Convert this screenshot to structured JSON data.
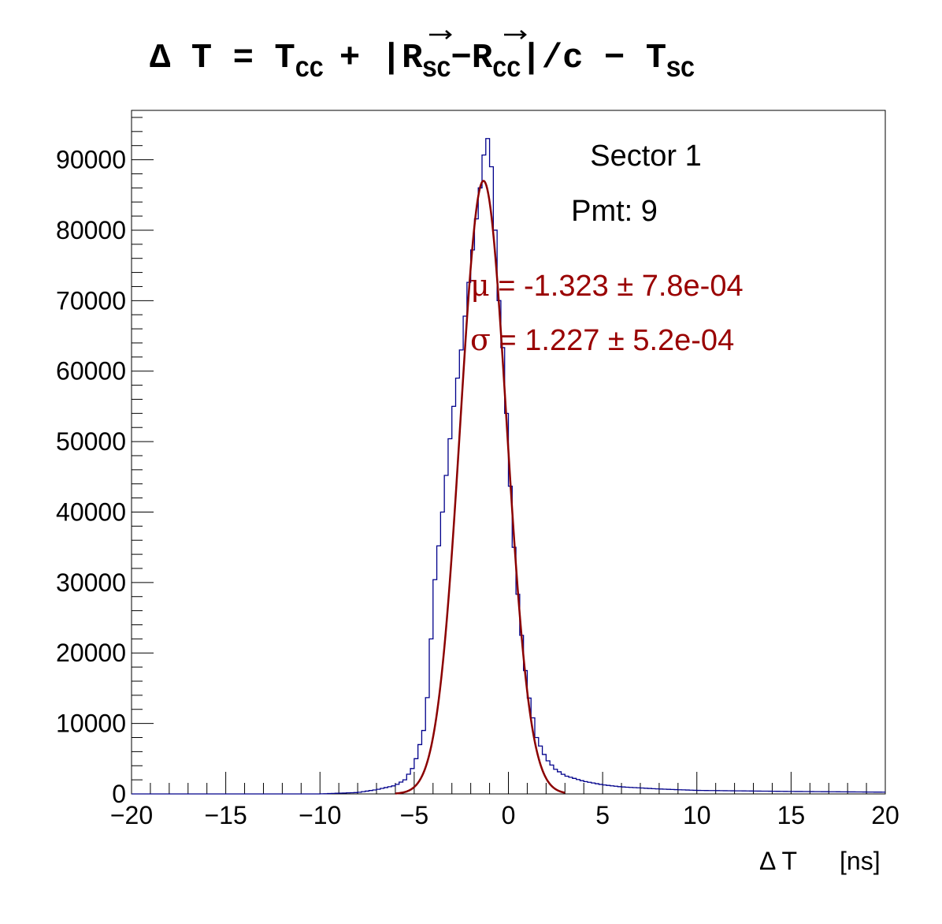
{
  "colors": {
    "histogram": "#00008b",
    "fit": "#8b0000",
    "fit_text": "#990000",
    "axes": "#000000",
    "background": "#ffffff"
  },
  "title": {
    "prefix": "Δ T = T",
    "cc_sub": "CC",
    "plus": "+ |",
    "r_letter": "R",
    "sc_sub": "SC",
    "minus": "−",
    "slash_c": "|/c − T",
    "end_sub": "SC"
  },
  "annotations": {
    "sector": "Sector 1",
    "pmt": "Pmt: 9",
    "mu_symbol": "μ",
    "mu_text": " = -1.323 ± 7.8e-04",
    "sigma_symbol": "σ",
    "sigma_text": " = 1.227 ± 5.2e-04"
  },
  "chart_data": {
    "type": "histogram",
    "title": "Δ T = T_CC + |R_SC − R_CC|/c − T_SC",
    "xlabel": "Δ T",
    "xlabel_unit": "[ns]",
    "ylabel": "",
    "xlim": [
      -20,
      20
    ],
    "ylim": [
      0,
      97000
    ],
    "x_ticks": [
      -20,
      -15,
      -10,
      -5,
      0,
      5,
      10,
      15,
      20
    ],
    "x_tick_labels": [
      "−20",
      "−15",
      "−10",
      "−5",
      "0",
      "5",
      "10",
      "15",
      "20"
    ],
    "y_ticks": [
      0,
      10000,
      20000,
      30000,
      40000,
      50000,
      60000,
      70000,
      80000,
      90000
    ],
    "y_tick_labels": [
      "0",
      "10000",
      "20000",
      "30000",
      "40000",
      "50000",
      "60000",
      "70000",
      "80000",
      "90000"
    ],
    "grid": false,
    "series": [
      {
        "type": "histogram",
        "points": [
          [
            -20,
            0
          ],
          [
            -10,
            0
          ],
          [
            -8,
            200
          ],
          [
            -7,
            600
          ],
          [
            -6,
            1200
          ],
          [
            -5.5,
            2000
          ],
          [
            -5,
            4000
          ],
          [
            -4.5,
            9000
          ],
          [
            -4.2,
            16000
          ],
          [
            -4,
            28000
          ],
          [
            -3.5,
            40000
          ],
          [
            -3,
            53000
          ],
          [
            -2.5,
            63000
          ],
          [
            -2,
            75000
          ],
          [
            -1.5,
            86000
          ],
          [
            -1.2,
            93000
          ],
          [
            -1,
            93000
          ],
          [
            -0.8,
            85000
          ],
          [
            -0.5,
            70000
          ],
          [
            -0.2,
            60000
          ],
          [
            0,
            48000
          ],
          [
            0.3,
            35000
          ],
          [
            0.6,
            25000
          ],
          [
            1,
            15000
          ],
          [
            1.5,
            8000
          ],
          [
            2,
            5000
          ],
          [
            2.5,
            3500
          ],
          [
            3,
            2600
          ],
          [
            4,
            1800
          ],
          [
            5,
            1300
          ],
          [
            6,
            1000
          ],
          [
            8,
            700
          ],
          [
            10,
            500
          ],
          [
            15,
            350
          ],
          [
            20,
            250
          ]
        ]
      },
      {
        "type": "fit",
        "function": "gaussian",
        "mu": -1.323,
        "sigma": 1.227,
        "amplitude": 87000,
        "range": [
          -6,
          3
        ]
      }
    ]
  }
}
